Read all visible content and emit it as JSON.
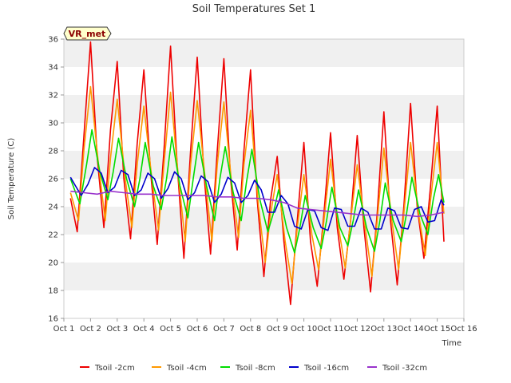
{
  "chart_data": {
    "type": "line",
    "title": "Soil Temperatures Set 1",
    "xlabel": "Time",
    "ylabel": "Soil Temperature (C)",
    "badge": "VR_met",
    "xlim": [
      1,
      16
    ],
    "ylim": [
      16,
      36
    ],
    "x_ticks": [
      "Oct 1",
      "Oct 2",
      "Oct 3",
      "Oct 4",
      "Oct 5",
      "Oct 6",
      "Oct 7",
      "Oct 8",
      "Oct 9",
      "Oct 10",
      "Oct 11",
      "Oct 12",
      "Oct 13",
      "Oct 14",
      "Oct 15",
      "Oct 16"
    ],
    "y_ticks": [
      16,
      18,
      20,
      22,
      24,
      26,
      28,
      30,
      32,
      34,
      36
    ],
    "grid": "horizontal bands",
    "legend_position": "bottom",
    "series": [
      {
        "name": "Tsoil -2cm",
        "color": "#ee0000",
        "x": [
          1.25,
          1.5,
          1.75,
          2.0,
          2.25,
          2.5,
          2.75,
          3.0,
          3.25,
          3.5,
          3.75,
          4.0,
          4.25,
          4.5,
          4.75,
          5.0,
          5.25,
          5.5,
          5.75,
          6.0,
          6.25,
          6.5,
          6.75,
          7.0,
          7.25,
          7.5,
          7.75,
          8.0,
          8.25,
          8.5,
          8.75,
          9.0,
          9.25,
          9.5,
          9.75,
          10.0,
          10.25,
          10.5,
          10.75,
          11.0,
          11.25,
          11.5,
          11.75,
          12.0,
          12.25,
          12.5,
          12.75,
          13.0,
          13.25,
          13.5,
          13.75,
          14.0,
          14.25,
          14.5,
          14.75,
          15.0,
          15.25
        ],
        "y": [
          24.6,
          22.2,
          29.0,
          35.8,
          27.5,
          22.5,
          29.5,
          34.4,
          26.0,
          21.7,
          28.5,
          33.8,
          26.5,
          21.3,
          28.0,
          35.5,
          27.0,
          20.3,
          28.0,
          34.7,
          26.5,
          20.6,
          28.0,
          34.6,
          26.0,
          20.9,
          28.0,
          33.8,
          24.5,
          19.0,
          24.5,
          27.6,
          21.5,
          17.0,
          23.0,
          28.6,
          21.5,
          18.3,
          23.5,
          29.3,
          22.5,
          18.8,
          23.0,
          29.1,
          22.5,
          17.9,
          23.5,
          30.8,
          23.0,
          18.4,
          24.0,
          31.4,
          24.0,
          20.3,
          25.5,
          31.2,
          21.5
        ]
      },
      {
        "name": "Tsoil -4cm",
        "color": "#ff9900",
        "x": [
          1.25,
          1.55,
          1.75,
          2.0,
          2.3,
          2.55,
          2.75,
          3.0,
          3.3,
          3.55,
          3.75,
          4.0,
          4.3,
          4.55,
          4.75,
          5.0,
          5.3,
          5.55,
          5.75,
          6.0,
          6.3,
          6.55,
          6.75,
          7.0,
          7.3,
          7.55,
          7.75,
          8.0,
          8.3,
          8.55,
          8.75,
          9.0,
          9.3,
          9.55,
          9.75,
          10.0,
          10.3,
          10.55,
          10.75,
          11.0,
          11.3,
          11.55,
          11.75,
          12.0,
          12.3,
          12.55,
          12.75,
          13.0,
          13.3,
          13.55,
          13.75,
          14.0,
          14.3,
          14.55,
          14.75,
          15.0,
          15.25
        ],
        "y": [
          25.0,
          23.0,
          28.0,
          32.6,
          27.0,
          23.0,
          27.5,
          31.7,
          26.0,
          22.5,
          27.0,
          31.2,
          26.0,
          22.3,
          27.0,
          32.2,
          26.0,
          21.5,
          27.0,
          31.6,
          26.0,
          21.5,
          27.0,
          31.5,
          25.5,
          21.8,
          27.0,
          30.9,
          24.0,
          20.0,
          23.5,
          26.3,
          21.5,
          18.5,
          22.5,
          26.3,
          22.0,
          19.5,
          23.0,
          27.4,
          22.5,
          19.6,
          23.0,
          27.0,
          22.5,
          19.0,
          23.0,
          28.2,
          23.0,
          19.5,
          23.5,
          28.6,
          23.5,
          20.5,
          24.5,
          28.6,
          23.5
        ]
      },
      {
        "name": "Tsoil -8cm",
        "color": "#00dd00",
        "x": [
          1.25,
          1.6,
          1.85,
          2.05,
          2.35,
          2.65,
          2.85,
          3.05,
          3.35,
          3.65,
          3.85,
          4.05,
          4.35,
          4.65,
          4.85,
          5.05,
          5.35,
          5.65,
          5.85,
          6.05,
          6.35,
          6.65,
          6.85,
          7.05,
          7.35,
          7.65,
          7.85,
          8.05,
          8.35,
          8.65,
          8.85,
          9.05,
          9.35,
          9.65,
          9.85,
          10.05,
          10.35,
          10.65,
          10.85,
          11.05,
          11.35,
          11.65,
          11.85,
          12.05,
          12.35,
          12.65,
          12.85,
          13.05,
          13.35,
          13.65,
          13.85,
          14.05,
          14.35,
          14.65,
          14.85,
          15.05,
          15.25
        ],
        "y": [
          26.0,
          24.2,
          27.0,
          29.5,
          26.5,
          24.5,
          26.5,
          28.9,
          26.0,
          24.0,
          26.0,
          28.6,
          25.5,
          23.8,
          26.0,
          29.0,
          25.5,
          23.2,
          26.0,
          28.6,
          25.5,
          23.0,
          26.0,
          28.3,
          25.0,
          23.0,
          25.8,
          28.1,
          24.5,
          22.2,
          23.5,
          25.2,
          22.5,
          20.7,
          22.5,
          24.8,
          22.5,
          21.0,
          23.0,
          25.4,
          22.5,
          21.2,
          23.0,
          25.2,
          22.5,
          20.8,
          23.0,
          25.7,
          23.0,
          21.5,
          23.5,
          26.1,
          23.5,
          22.0,
          24.5,
          26.3,
          24.3
        ]
      },
      {
        "name": "Tsoil -16cm",
        "color": "#0000cc",
        "x": [
          1.25,
          1.4,
          1.65,
          1.9,
          2.15,
          2.4,
          2.65,
          2.9,
          3.15,
          3.4,
          3.65,
          3.9,
          4.15,
          4.4,
          4.65,
          4.9,
          5.15,
          5.4,
          5.65,
          5.9,
          6.15,
          6.4,
          6.65,
          6.9,
          7.15,
          7.4,
          7.65,
          7.9,
          8.15,
          8.4,
          8.65,
          8.9,
          9.15,
          9.4,
          9.65,
          9.9,
          10.15,
          10.4,
          10.65,
          10.9,
          11.15,
          11.4,
          11.65,
          11.9,
          12.15,
          12.4,
          12.65,
          12.9,
          13.15,
          13.4,
          13.65,
          13.9,
          14.15,
          14.4,
          14.65,
          14.9,
          15.15,
          15.25
        ],
        "y": [
          26.1,
          25.6,
          24.8,
          25.6,
          26.8,
          26.4,
          25.0,
          25.4,
          26.6,
          26.3,
          24.8,
          25.2,
          26.4,
          26.0,
          24.6,
          25.3,
          26.5,
          26.0,
          24.5,
          25.0,
          26.2,
          25.8,
          24.3,
          24.9,
          26.1,
          25.7,
          24.3,
          24.8,
          25.9,
          25.2,
          23.6,
          23.6,
          24.8,
          24.2,
          22.6,
          22.4,
          23.8,
          23.7,
          22.5,
          22.3,
          23.9,
          23.8,
          22.6,
          22.6,
          23.9,
          23.6,
          22.4,
          22.4,
          23.9,
          23.7,
          22.5,
          22.4,
          23.8,
          24.0,
          22.9,
          23.0,
          24.5,
          24.1
        ]
      },
      {
        "name": "Tsoil -32cm",
        "color": "#9933cc",
        "x": [
          1.25,
          1.75,
          2.25,
          2.75,
          3.25,
          3.75,
          4.25,
          4.75,
          5.25,
          5.75,
          6.25,
          6.75,
          7.25,
          7.75,
          8.25,
          8.75,
          9.25,
          9.75,
          10.25,
          10.75,
          11.25,
          11.75,
          12.25,
          12.75,
          13.25,
          13.75,
          14.25,
          14.75,
          15.25
        ],
        "y": [
          25.1,
          25.0,
          24.9,
          25.1,
          25.0,
          24.9,
          24.9,
          24.8,
          24.8,
          24.8,
          24.8,
          24.7,
          24.7,
          24.6,
          24.6,
          24.5,
          24.3,
          23.9,
          23.8,
          23.7,
          23.6,
          23.5,
          23.4,
          23.4,
          23.4,
          23.4,
          23.3,
          23.4,
          23.6
        ]
      }
    ]
  }
}
